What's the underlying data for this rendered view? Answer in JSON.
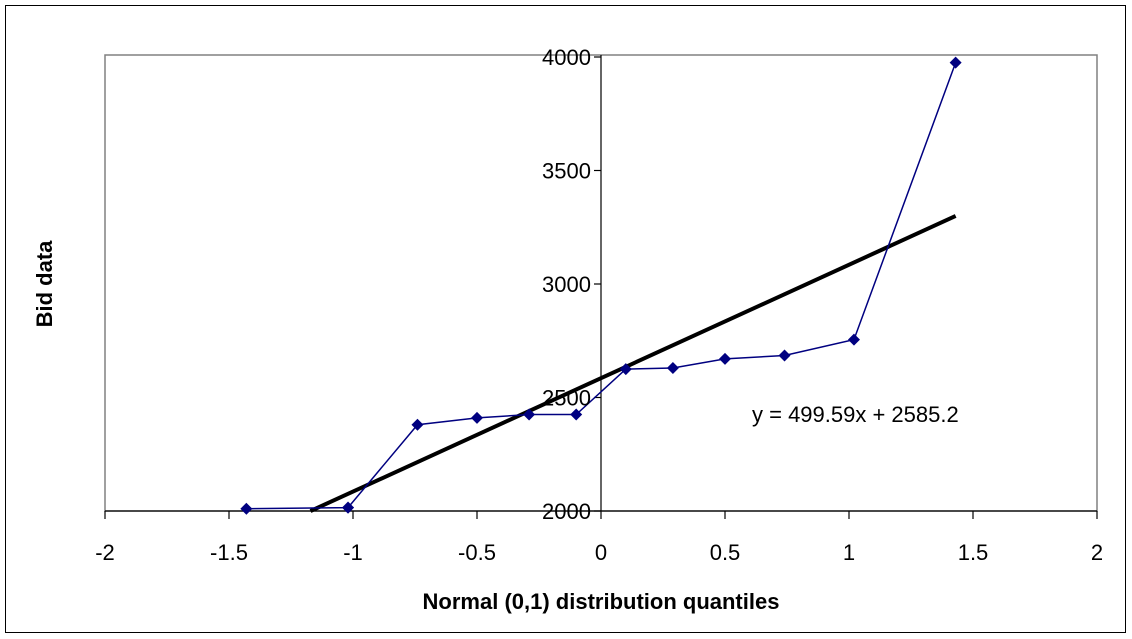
{
  "chart_data": {
    "type": "scatter",
    "title": "",
    "xlabel": "Normal (0,1) distribution quantiles",
    "ylabel": "Bid data",
    "xlim": [
      -2,
      2
    ],
    "ylim": [
      2000,
      4000
    ],
    "x_ticks": [
      "-2",
      "-1.5",
      "-1",
      "-0.5",
      "0",
      "0.5",
      "1",
      "1.5",
      "2"
    ],
    "y_ticks": [
      "2000",
      "2500",
      "3000",
      "3500",
      "4000"
    ],
    "grid": false,
    "legend": "none",
    "series": [
      {
        "style": "line-with-diamond-markers",
        "color": "#000080",
        "x": [
          -1.43,
          -1.02,
          -1.02,
          -0.74,
          -0.5,
          -0.29,
          -0.1,
          0.1,
          0.29,
          0.5,
          0.74,
          1.02,
          1.43
        ],
        "y": [
          2010,
          2015,
          2015,
          2380,
          2410,
          2425,
          2425,
          2625,
          2630,
          2670,
          2685,
          2755,
          3975
        ]
      }
    ],
    "trendline": {
      "color": "#000000",
      "slope": 499.59,
      "intercept": 2585.2,
      "x_range": [
        -1.43,
        1.43
      ],
      "equation": "y = 499.59x + 2585.2"
    }
  }
}
